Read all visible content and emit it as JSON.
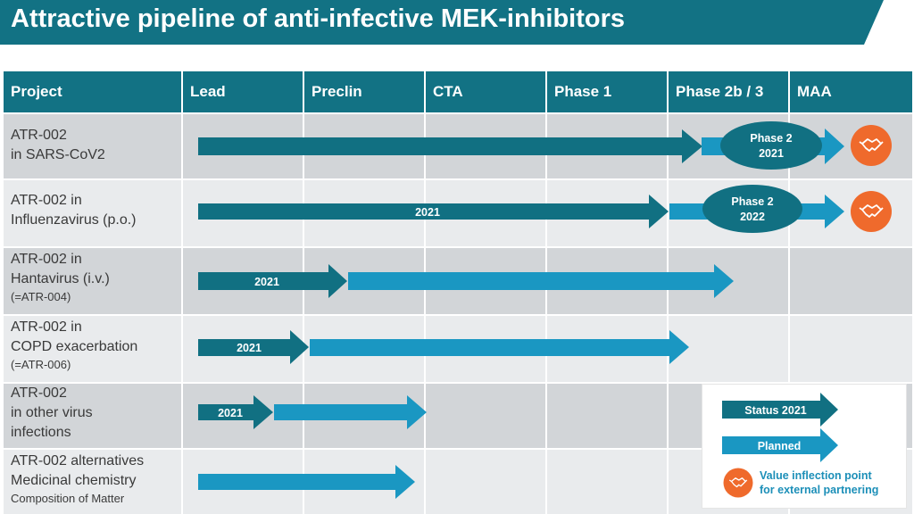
{
  "title": "Attractive pipeline of anti-infective MEK-inhibitors",
  "columns": [
    "Project",
    "Lead",
    "Preclin",
    "CTA",
    "Phase 1",
    "Phase 2b / 3",
    "MAA"
  ],
  "rows": [
    {
      "line1": "ATR-002",
      "line2": "in SARS-CoV2",
      "line3": ""
    },
    {
      "line1": "ATR-002 in",
      "line2": "Influenzavirus (p.o.)",
      "line3": ""
    },
    {
      "line1": "ATR-002 in",
      "line2": "Hantavirus (i.v.)",
      "line3": "(=ATR-004)"
    },
    {
      "line1": "ATR-002 in",
      "line2": "COPD exacerbation",
      "line3": "(=ATR-006)"
    },
    {
      "line1": "ATR-002",
      "line2": "in other virus",
      "line3": "infections"
    },
    {
      "line1": "ATR-002 alternatives",
      "line2": "Medicinal chemistry",
      "line3": "Composition of Matter"
    }
  ],
  "arrow_labels": {
    "influenza_status": "2021",
    "hanta_status": "2021",
    "copd_status": "2021",
    "other_status": "2021"
  },
  "milestones": [
    {
      "line1": "Phase 2",
      "line2": "2021"
    },
    {
      "line1": "Phase 2",
      "line2": "2022"
    }
  ],
  "legend": {
    "status": "Status 2021",
    "planned": "Planned",
    "inflection_line1": "Value inflection point",
    "inflection_line2": "for external partnering"
  },
  "colors": {
    "header": "#127284",
    "status_arrow": "#117082",
    "planned_arrow": "#1a97c2",
    "partner_icon": "#ef6a2c",
    "row_dark": "#d2d5d8",
    "row_light": "#e9ebed"
  },
  "icons": [
    "handshake-icon"
  ]
}
